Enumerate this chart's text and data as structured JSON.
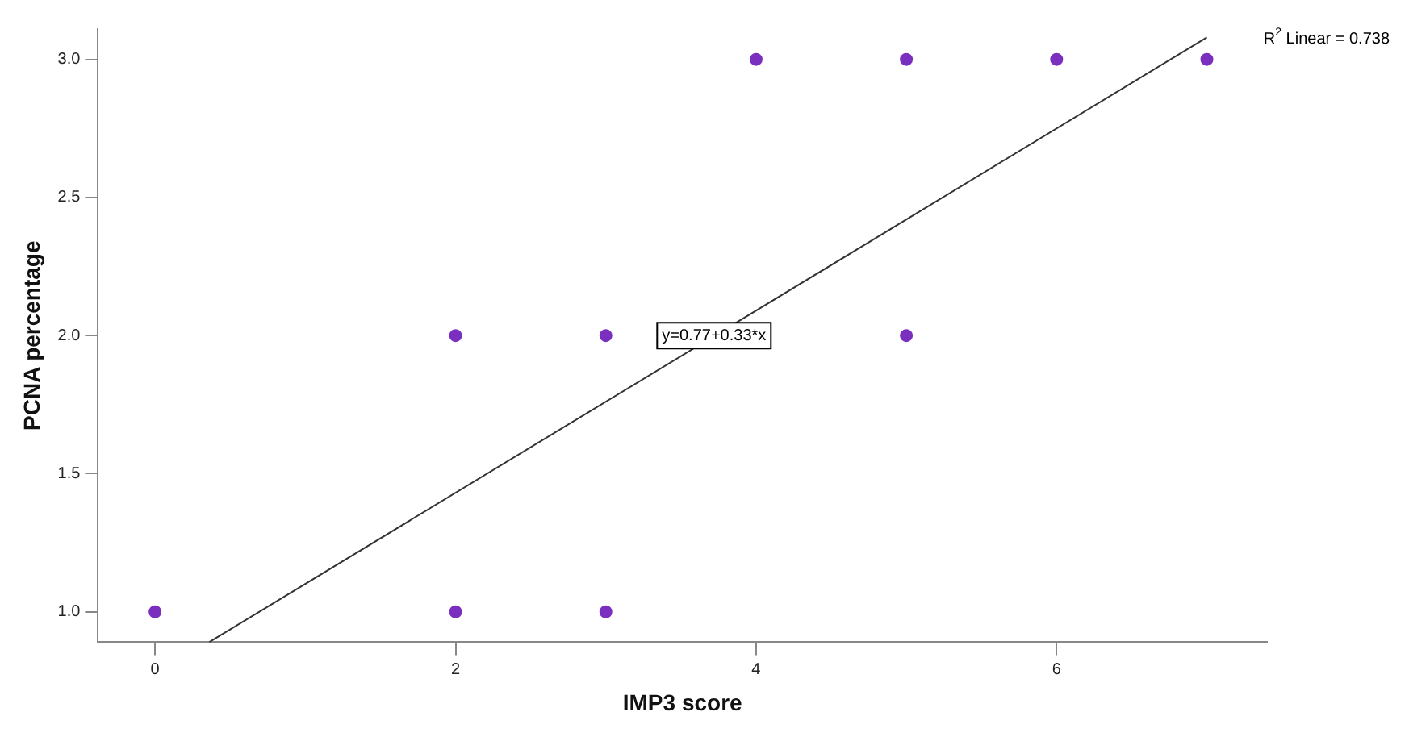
{
  "chart_data": {
    "type": "scatter",
    "xlabel": "IMP3 score",
    "ylabel": "PCNA percentage",
    "xlim": [
      -0.38,
      7.4
    ],
    "xticks": [
      0,
      2,
      4,
      6
    ],
    "ylim": [
      0.89,
      3.11
    ],
    "yticks": [
      {
        "value": 1,
        "label": "1.0"
      },
      1.5,
      {
        "value": 2,
        "label": "2.0"
      },
      2.5,
      {
        "value": 3,
        "label": "3.0"
      }
    ],
    "grid": false,
    "legend": false,
    "marker": "circle",
    "series": [
      {
        "type": "scatter",
        "color": "#7b2fbf",
        "x": [
          0,
          2,
          2,
          3,
          3,
          4,
          5,
          5,
          6,
          7
        ],
        "values": [
          1,
          2,
          1,
          2,
          1,
          3,
          3,
          2,
          3,
          3
        ]
      },
      {
        "type": "line",
        "color": "#333333",
        "x": [
          0.36,
          7.0
        ],
        "values": [
          0.89,
          3.08
        ],
        "marker": "none"
      }
    ],
    "annotations": [
      {
        "text": "y=0.77+0.33*x",
        "x": 3.72,
        "y": 2.0
      },
      "R$^{2}$ Linear = 0.738"
    ]
  }
}
